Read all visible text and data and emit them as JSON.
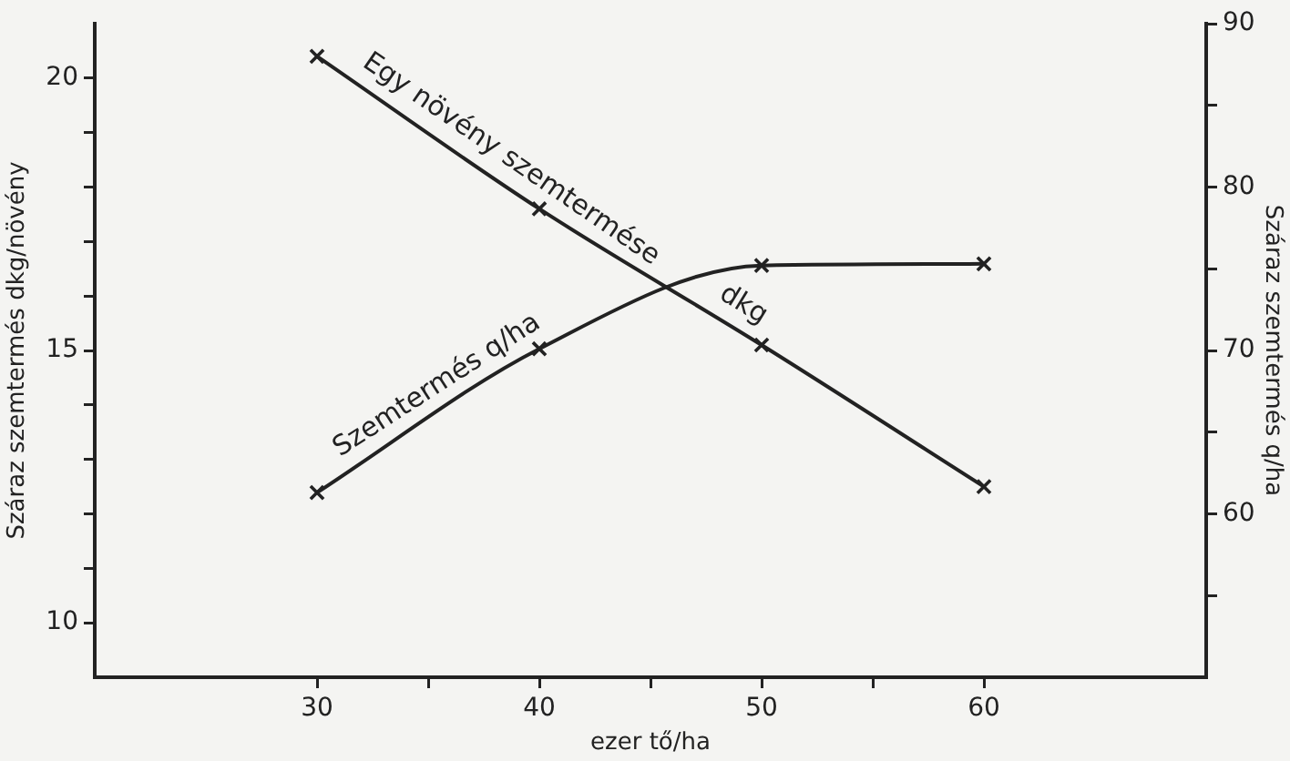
{
  "chart_data": {
    "type": "line",
    "xlabel": "ezer tő/ha",
    "ylabel": "Száraz szemtermés dkg/növény",
    "y2label": "Száraz szemtermés q/ha",
    "x": [
      30,
      40,
      50,
      60
    ],
    "series": [
      {
        "name": "Egy növény szemtermése",
        "color": "#222222",
        "values": [
          20.4,
          17.6,
          15.1,
          12.5
        ]
      },
      {
        "name": "Szemtermés q/ha",
        "color": "#222222",
        "axis": "y2",
        "values": [
          61.3,
          70.1,
          75.2,
          75.3
        ]
      }
    ],
    "xlim": [
      20,
      70
    ],
    "xticks": [
      30,
      {
        "value": 35,
        "label": null
      },
      40,
      {
        "value": 45,
        "label": null
      },
      50,
      {
        "value": 55,
        "label": null
      },
      60
    ],
    "ylim": [
      9,
      21
    ],
    "yticks": [
      10,
      {
        "value": 11,
        "label": null
      },
      {
        "value": 12,
        "label": null
      },
      {
        "value": 13,
        "label": null
      },
      {
        "value": 14,
        "label": null
      },
      15,
      {
        "value": 16,
        "label": null
      },
      {
        "value": 17,
        "label": null
      },
      {
        "value": 18,
        "label": null
      },
      {
        "value": 19,
        "label": null
      },
      20
    ],
    "y2lim": [
      50,
      90
    ],
    "y2ticks": [
      {
        "value": 55,
        "label": null
      },
      60,
      {
        "value": 65,
        "label": null
      },
      70,
      {
        "value": 75,
        "label": null
      },
      80,
      {
        "value": 85,
        "label": null
      },
      90
    ],
    "annotations": [
      "dkg"
    ],
    "grid": false,
    "legend": false,
    "marker": "cross",
    "line_style": "solid"
  }
}
